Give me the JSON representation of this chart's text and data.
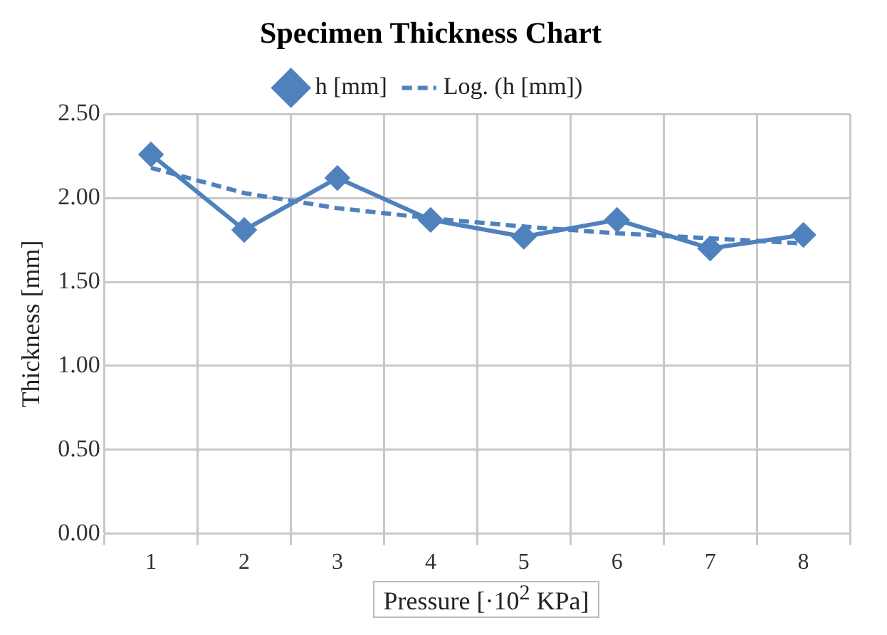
{
  "chart_data": {
    "type": "line",
    "title": "Specimen Thickness Chart",
    "xlabel": "Pressure [·10$^{2}$ KPa]",
    "ylabel": "Thickness [mm]",
    "categories": [
      "1",
      "2",
      "3",
      "4",
      "5",
      "6",
      "7",
      "8"
    ],
    "series": [
      {
        "name": "h [mm]",
        "color": "#4f81bd",
        "values": [
          2.26,
          1.81,
          2.12,
          1.87,
          1.77,
          1.87,
          1.7,
          1.78
        ],
        "marker": "diamond",
        "line_style": "solid"
      },
      {
        "name": "Log. (h [mm])",
        "color": "#4f81bd",
        "values": [
          2.18,
          2.03,
          1.94,
          1.88,
          1.83,
          1.79,
          1.76,
          1.73
        ],
        "marker": "none",
        "line_style": "dashed"
      }
    ],
    "ylim": [
      0,
      2.5
    ],
    "yticks": [
      {
        "value": 0,
        "label": "0.00"
      },
      {
        "value": 0.5,
        "label": "0.50"
      },
      {
        "value": 1,
        "label": "1.00"
      },
      {
        "value": 1.5,
        "label": "1.50"
      },
      {
        "value": 2,
        "label": "2.00"
      },
      {
        "value": 2.5,
        "label": "2.50"
      }
    ],
    "grid": true,
    "legend": "top"
  }
}
